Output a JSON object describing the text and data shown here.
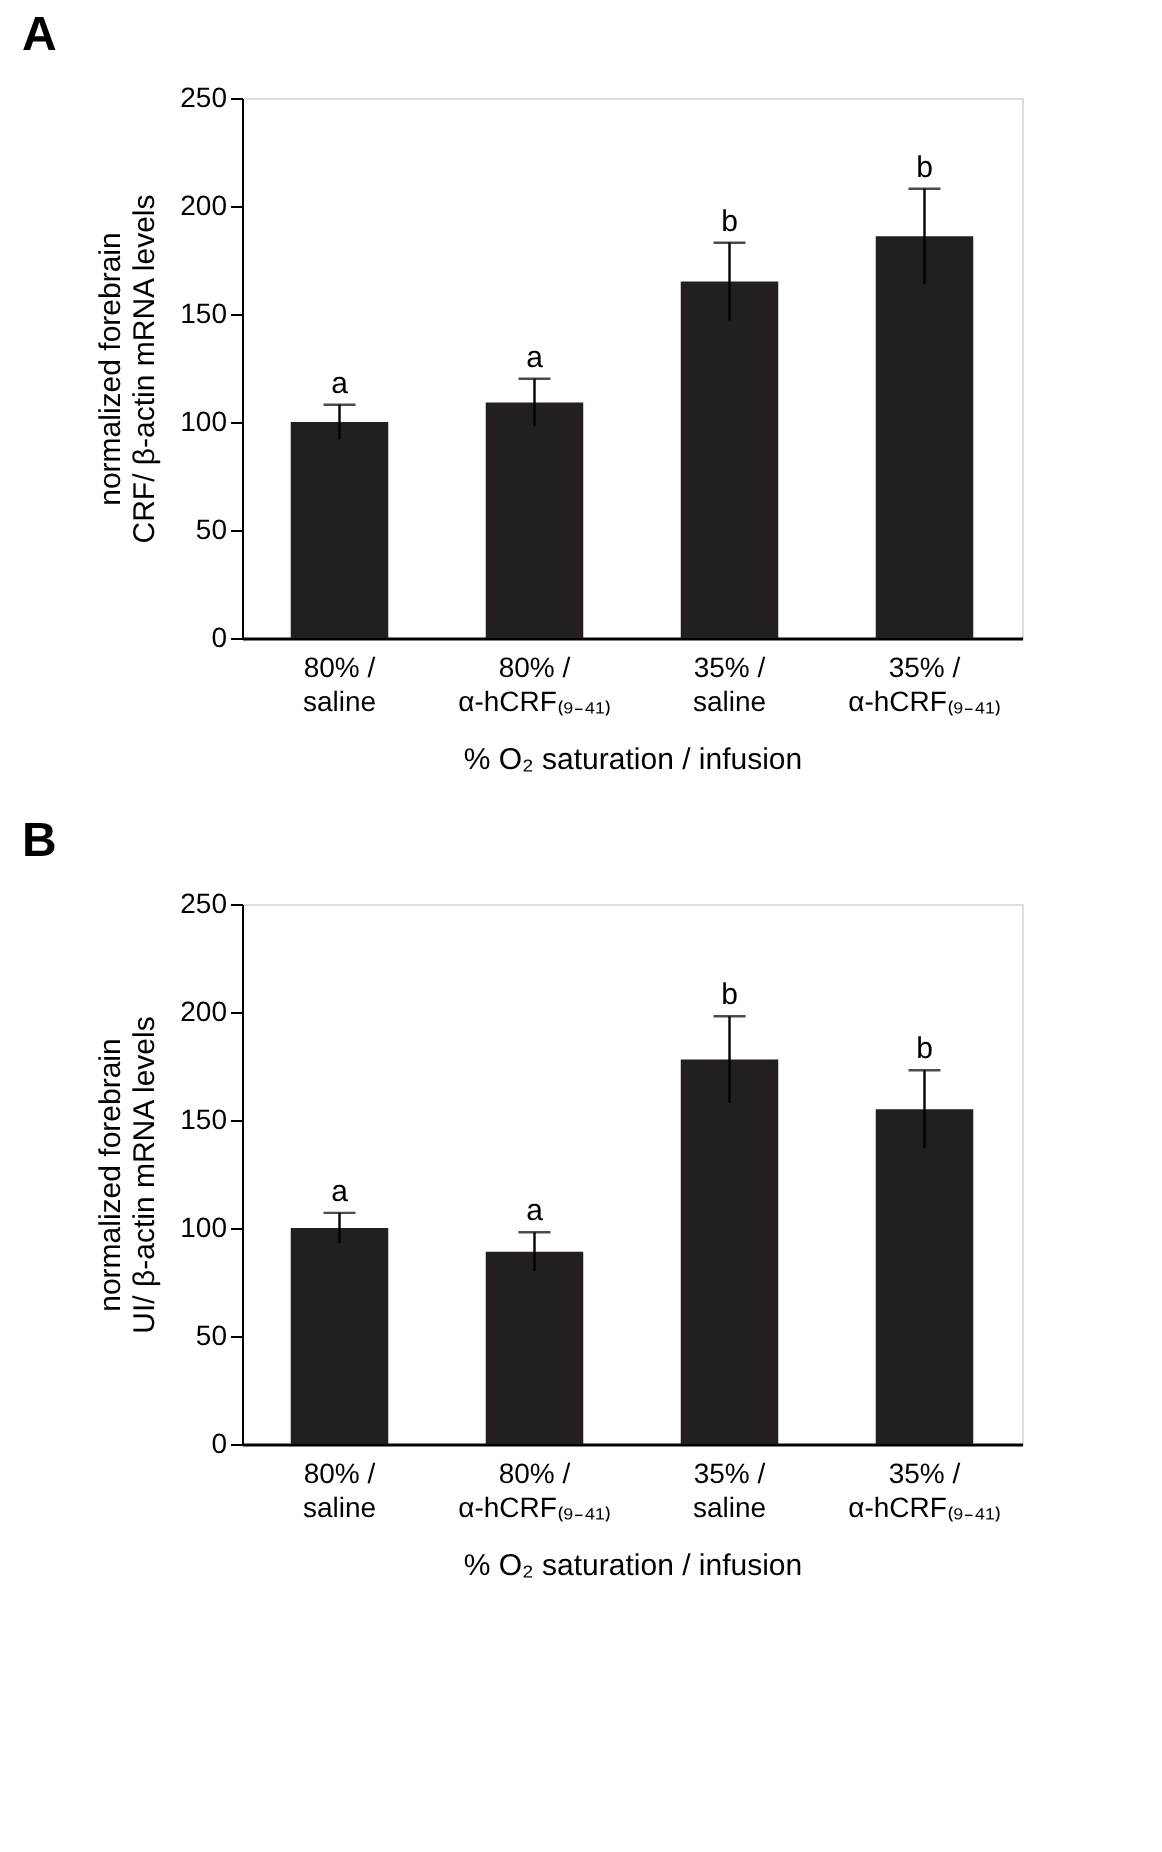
{
  "chart_data": [
    {
      "type": "bar",
      "title": "A",
      "categories": [
        "80% /\nsaline",
        "80% /\nα-hCRF₍₉₋₄₁₎",
        "35% /\nsaline",
        "35% /\nα-hCRF₍₉₋₄₁₎"
      ],
      "values": [
        100,
        109,
        165,
        186
      ],
      "errors": [
        8,
        11,
        18,
        22
      ],
      "color": "#231f20",
      "xlabel": "% O₂ saturation / infusion",
      "ylabel": "normalized forebrain\nCRF/ β-actin mRNA levels",
      "ylim": [
        0,
        250
      ],
      "yticks": [
        0,
        50,
        100,
        150,
        200,
        250
      ],
      "grid": false,
      "annotations": [
        {
          "text": "a",
          "x": "80% /\nsaline",
          "y": 108
        },
        {
          "text": "a",
          "x": "80% /\nα-hCRF₍₉₋₄₁₎",
          "y": 120
        },
        {
          "text": "b",
          "x": "35% /\nsaline",
          "y": 183
        },
        {
          "text": "b",
          "x": "35% /\nα-hCRF₍₉₋₄₁₎",
          "y": 208
        }
      ]
    },
    {
      "type": "bar",
      "title": "B",
      "categories": [
        "80% /\nsaline",
        "80% /\nα-hCRF₍₉₋₄₁₎",
        "35% /\nsaline",
        "35% /\nα-hCRF₍₉₋₄₁₎"
      ],
      "values": [
        100,
        89,
        178,
        155
      ],
      "errors": [
        7,
        9,
        20,
        18
      ],
      "color": "#231f20",
      "xlabel": "% O₂ saturation / infusion",
      "ylabel": "normalized forebrain\nUI/ β-actin mRNA levels",
      "ylim": [
        0,
        250
      ],
      "yticks": [
        0,
        50,
        100,
        150,
        200,
        250
      ],
      "grid": false,
      "annotations": [
        {
          "text": "a",
          "x": "80% /\nsaline",
          "y": 107
        },
        {
          "text": "a",
          "x": "80% /\nα-hCRF₍₉₋₄₁₎",
          "y": 98
        },
        {
          "text": "b",
          "x": "35% /\nsaline",
          "y": 198
        },
        {
          "text": "b",
          "x": "35% /\nα-hCRF₍₉₋₄₁₎",
          "y": 173
        }
      ]
    }
  ]
}
